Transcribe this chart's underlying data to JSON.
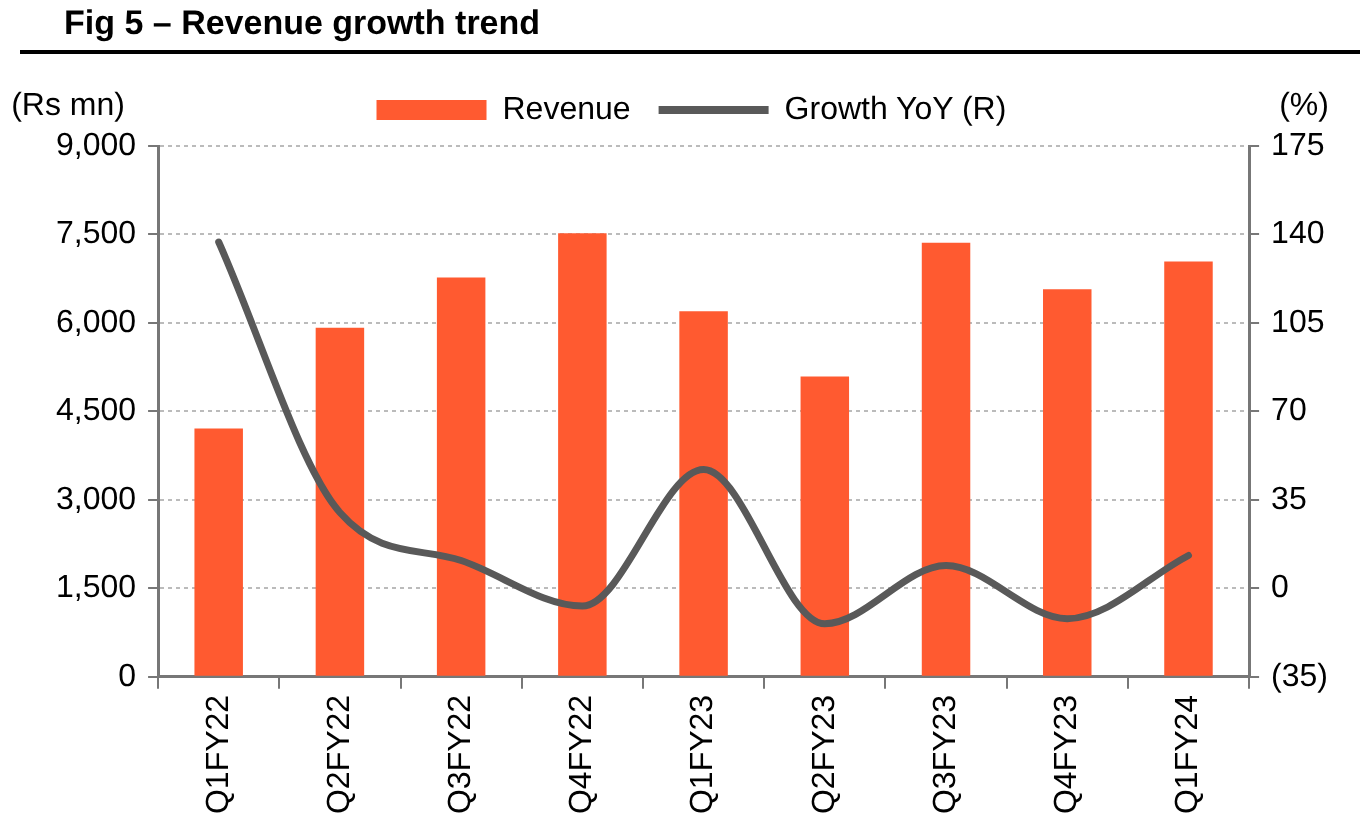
{
  "chart_data": {
    "type": "bar",
    "title": "Fig 5 – Revenue growth trend",
    "ylabel": "(Rs mn)",
    "y2label": "(%)",
    "categories": [
      "Q1FY22",
      "Q2FY22",
      "Q3FY22",
      "Q4FY22",
      "Q1FY23",
      "Q2FY23",
      "Q3FY23",
      "Q4FY23",
      "Q1FY24"
    ],
    "series": [
      {
        "name": "Revenue",
        "color": "#ff5a30",
        "values": [
          4210,
          5920,
          6770,
          7520,
          6200,
          5090,
          7360,
          6570,
          7040
        ]
      },
      {
        "name": "Growth YoY (R)",
        "type": "line",
        "axis": "y2",
        "color": "#595959",
        "values": [
          137,
          30,
          11,
          -7,
          47,
          -14,
          9,
          -12,
          13
        ]
      }
    ],
    "ylim": [
      0,
      9000
    ],
    "yticks": [
      0,
      {
        "value": 1500,
        "label": "1,500"
      },
      {
        "value": 3000,
        "label": "3,000"
      },
      {
        "value": 4500,
        "label": "4,500"
      },
      {
        "value": 6000,
        "label": "6,000"
      },
      {
        "value": 7500,
        "label": "7,500"
      },
      {
        "value": 9000,
        "label": "9,000"
      }
    ],
    "y2lim": [
      -35,
      175
    ],
    "y2ticks": [
      {
        "value": -35,
        "label": "(35)"
      },
      0,
      35,
      70,
      105,
      140,
      175
    ],
    "grid": "y",
    "legend": "top",
    "marker": "none",
    "line_style": "solid"
  }
}
